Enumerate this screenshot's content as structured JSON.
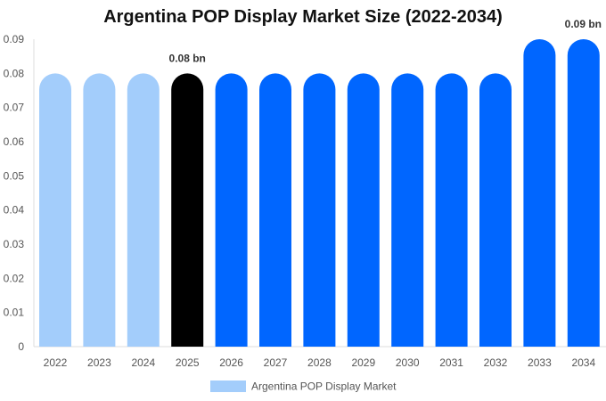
{
  "chart_data": {
    "type": "bar",
    "title": "Argentina POP Display Market Size (2022-2034)",
    "xlabel": "",
    "ylabel": "",
    "categories": [
      "2022",
      "2023",
      "2024",
      "2025",
      "2026",
      "2027",
      "2028",
      "2029",
      "2030",
      "2031",
      "2032",
      "2033",
      "2034"
    ],
    "series": [
      {
        "name": "Argentina POP Display Market",
        "values": [
          0.08,
          0.08,
          0.08,
          0.08,
          0.08,
          0.08,
          0.08,
          0.08,
          0.08,
          0.08,
          0.08,
          0.09,
          0.09
        ]
      }
    ],
    "bar_colors": [
      "#a3cdfb",
      "#a3cdfb",
      "#a3cdfb",
      "#000000",
      "#0066ff",
      "#0066ff",
      "#0066ff",
      "#0066ff",
      "#0066ff",
      "#0066ff",
      "#0066ff",
      "#0066ff",
      "#0066ff"
    ],
    "data_labels": [
      {
        "index": 3,
        "text": "0.08 bn"
      },
      {
        "index": 12,
        "text": "0.09 bn"
      }
    ],
    "ylim": [
      0,
      0.09
    ],
    "yticks": [
      "0",
      "0.01",
      "0.02",
      "0.03",
      "0.04",
      "0.05",
      "0.06",
      "0.07",
      "0.08",
      "0.09"
    ],
    "grid": false,
    "legend": {
      "position": "bottom",
      "color": "#a3cdfb"
    }
  }
}
